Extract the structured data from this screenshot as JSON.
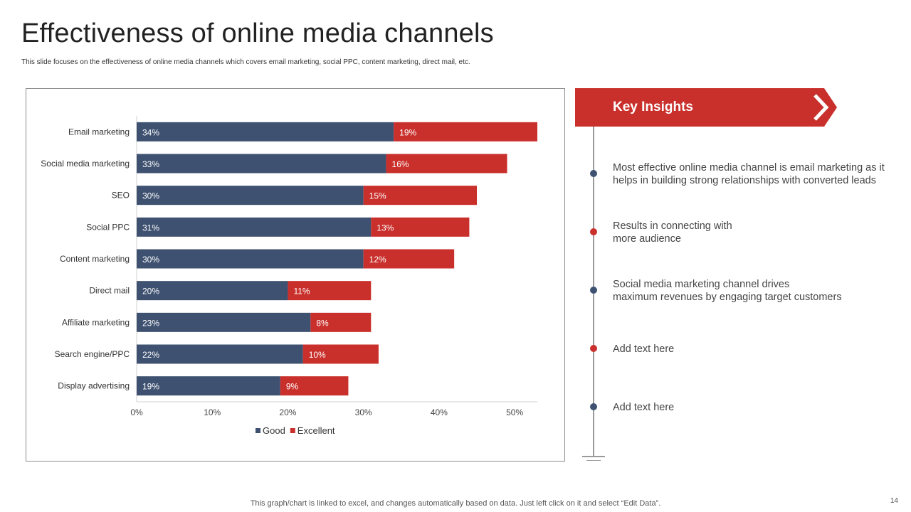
{
  "page": {
    "title": "Effectiveness of online media channels",
    "subtitle": "This slide focuses on the effectiveness of online media channels which covers email marketing, social PPC,  content marketing, direct mail, etc.",
    "footer": "This graph/chart is linked to excel,  and changes automatically based on data. Just left click on it and select “Edit Data”.",
    "page_number": "14"
  },
  "colors": {
    "good": "#3e5170",
    "excellent": "#c9302c",
    "accent_red": "#c9302c"
  },
  "chart_data": {
    "type": "bar",
    "orientation": "horizontal",
    "stacked": true,
    "title": "",
    "xlabel": "",
    "ylabel": "",
    "categories": [
      "Email marketing",
      "Social media marketing",
      "SEO",
      "Social PPC",
      "Content marketing",
      "Direct mail",
      "Affiliate marketing",
      "Search engine/PPC",
      "Display advertising"
    ],
    "series": [
      {
        "name": "Good",
        "values": [
          34,
          33,
          30,
          31,
          30,
          20,
          23,
          22,
          19
        ],
        "labels": [
          "34%",
          "33%",
          "30%",
          "31%",
          "30%",
          "20%",
          "23%",
          "22%",
          "19%"
        ]
      },
      {
        "name": "Excellent",
        "values": [
          19,
          16,
          15,
          13,
          12,
          11,
          8,
          10,
          9
        ],
        "labels": [
          "19%",
          "16%",
          "15%",
          "13%",
          "12%",
          "11%",
          "8%",
          "10%",
          "9%"
        ]
      }
    ],
    "xlim": [
      0,
      53
    ],
    "xticks": [
      0,
      10,
      20,
      30,
      40,
      50
    ],
    "xtick_labels": [
      "0%",
      "10%",
      "20%",
      "30%",
      "40%",
      "50%"
    ],
    "legend_position": "bottom",
    "grid": false
  },
  "insights": {
    "header": "Key Insights",
    "items": [
      {
        "text": "Most effective online media channel is email marketing as it helps in building strong relationships with converted leads",
        "dot": "blue"
      },
      {
        "text": "Results in connecting with\nmore audience",
        "dot": "red"
      },
      {
        "text": "Social media marketing channel drives\nmaximum revenues by engaging target customers",
        "dot": "blue"
      },
      {
        "text": "Add text here",
        "dot": "red"
      },
      {
        "text": "Add text here",
        "dot": "blue"
      }
    ]
  }
}
